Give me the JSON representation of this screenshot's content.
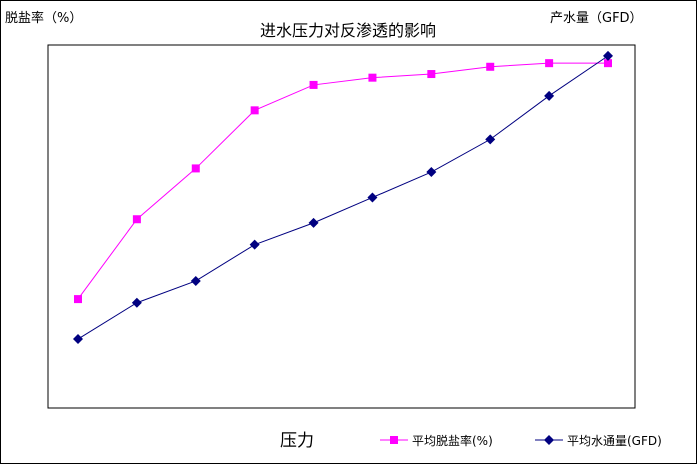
{
  "chart_data": {
    "type": "line",
    "title": "进水压力对反渗透的影响",
    "xlabel": "压力",
    "ylabel_left": "脱盐率（%）",
    "ylabel_right": "产水量（GFD）",
    "x": [
      1,
      2,
      3,
      4,
      5,
      6,
      7,
      8,
      9,
      10
    ],
    "series": [
      {
        "name": "平均脱盐率(%)",
        "color": "#ff00ff",
        "marker": "square",
        "values": [
          0.3,
          0.52,
          0.66,
          0.82,
          0.89,
          0.91,
          0.92,
          0.94,
          0.95,
          0.95
        ]
      },
      {
        "name": "平均水通量(GFD)",
        "color": "#000080",
        "marker": "diamond",
        "values": [
          0.19,
          0.29,
          0.35,
          0.45,
          0.51,
          0.58,
          0.65,
          0.74,
          0.86,
          0.97
        ]
      }
    ],
    "ylim": [
      0,
      1
    ],
    "grid": false,
    "legend": "bottom-right"
  }
}
